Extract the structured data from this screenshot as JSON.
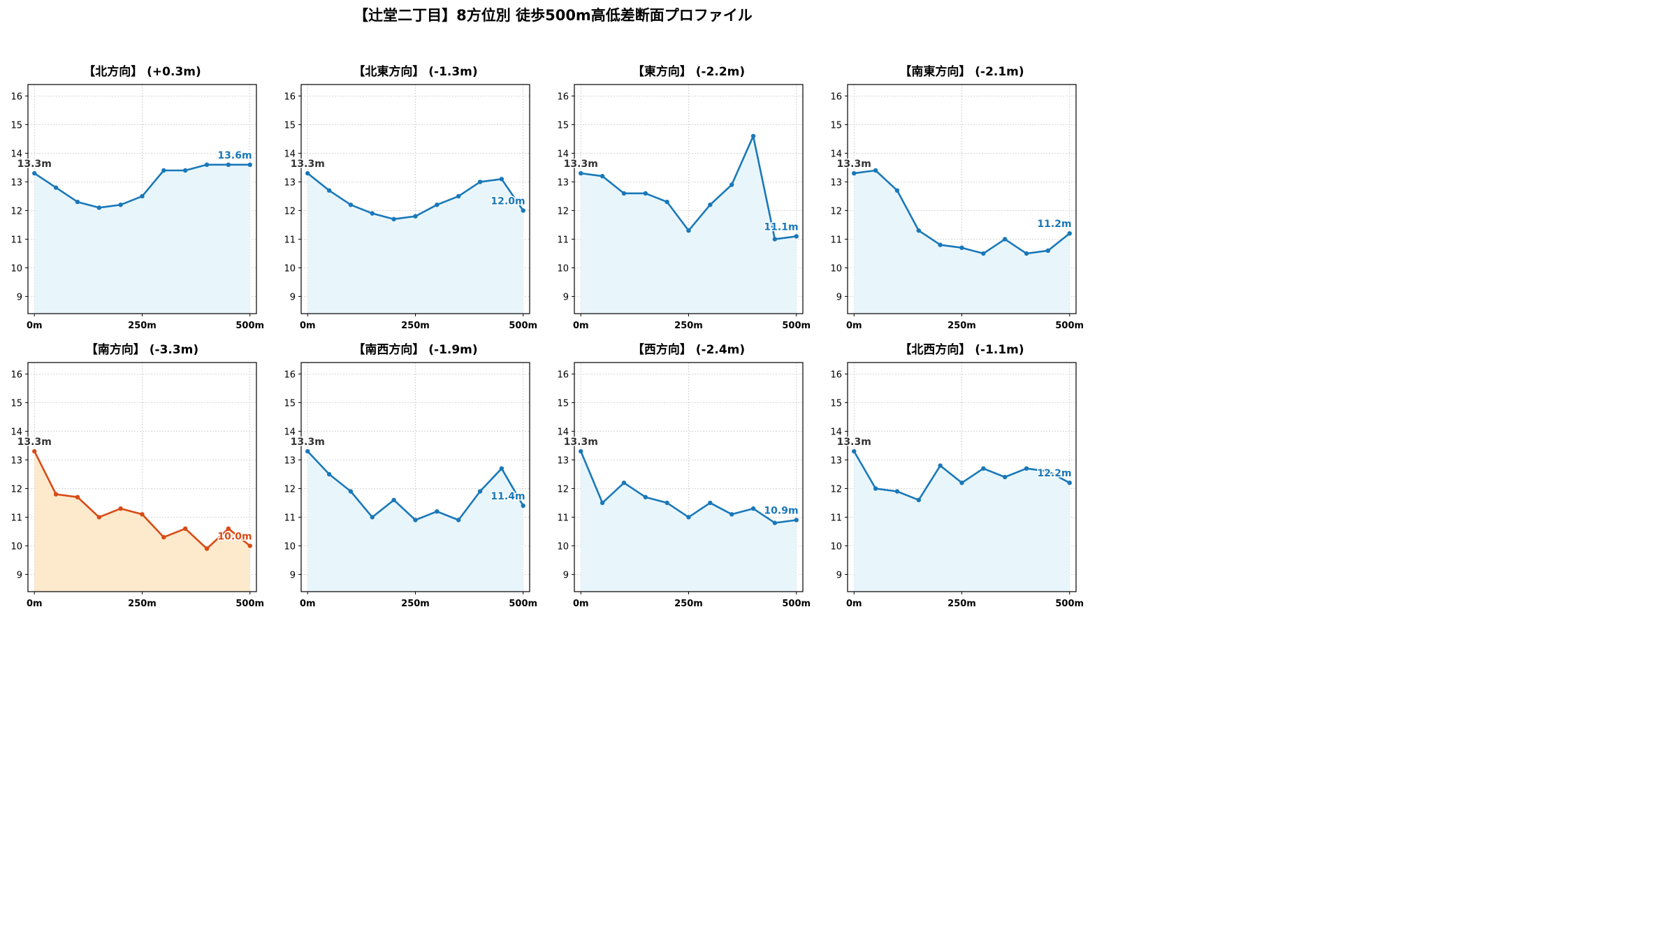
{
  "title": "【辻堂二丁目】8方位別 徒歩500m高低差断面プロファイル",
  "colors": {
    "line": "#1a78b8",
    "fill": "#e8f6fc",
    "highlight_line": "#d84b16",
    "highlight_fill": "#fde9cc",
    "start_label": "#333333",
    "grid": "#c8c8c8"
  },
  "chart_data": [
    {
      "type": "line",
      "title": "【北方向】 (+0.3m)",
      "x": [
        0,
        50,
        100,
        150,
        200,
        250,
        300,
        350,
        400,
        450,
        500
      ],
      "values": [
        13.3,
        12.8,
        12.3,
        12.1,
        12.2,
        12.5,
        13.4,
        13.4,
        13.6,
        13.6,
        13.6
      ],
      "start_label": "13.3m",
      "end_label": "13.6m",
      "highlight": false,
      "xticks": [
        "0m",
        "250m",
        "500m"
      ],
      "yticks": [
        "9",
        "10",
        "11",
        "12",
        "13",
        "14",
        "15",
        "16"
      ],
      "ylim": [
        8.4,
        16.4
      ],
      "xlim": [
        -15,
        515
      ],
      "grid": true
    },
    {
      "type": "line",
      "title": "【北東方向】 (-1.3m)",
      "x": [
        0,
        50,
        100,
        150,
        200,
        250,
        300,
        350,
        400,
        450,
        500
      ],
      "values": [
        13.3,
        12.7,
        12.2,
        11.9,
        11.7,
        11.8,
        12.2,
        12.5,
        13.0,
        13.1,
        12.0
      ],
      "start_label": "13.3m",
      "end_label": "12.0m",
      "highlight": false,
      "xticks": [
        "0m",
        "250m",
        "500m"
      ],
      "yticks": [
        "9",
        "10",
        "11",
        "12",
        "13",
        "14",
        "15",
        "16"
      ],
      "ylim": [
        8.4,
        16.4
      ],
      "xlim": [
        -15,
        515
      ],
      "grid": true
    },
    {
      "type": "line",
      "title": "【東方向】 (-2.2m)",
      "x": [
        0,
        50,
        100,
        150,
        200,
        250,
        300,
        350,
        400,
        450,
        500
      ],
      "values": [
        13.3,
        13.2,
        12.6,
        12.6,
        12.3,
        11.3,
        12.2,
        12.9,
        14.6,
        11.0,
        11.1
      ],
      "start_label": "13.3m",
      "end_label": "11.1m",
      "highlight": false,
      "xticks": [
        "0m",
        "250m",
        "500m"
      ],
      "yticks": [
        "9",
        "10",
        "11",
        "12",
        "13",
        "14",
        "15",
        "16"
      ],
      "ylim": [
        8.4,
        16.4
      ],
      "xlim": [
        -15,
        515
      ],
      "grid": true
    },
    {
      "type": "line",
      "title": "【南東方向】 (-2.1m)",
      "x": [
        0,
        50,
        100,
        150,
        200,
        250,
        300,
        350,
        400,
        450,
        500
      ],
      "values": [
        13.3,
        13.4,
        12.7,
        11.3,
        10.8,
        10.7,
        10.5,
        11.0,
        10.5,
        10.6,
        11.2
      ],
      "start_label": "13.3m",
      "end_label": "11.2m",
      "highlight": false,
      "xticks": [
        "0m",
        "250m",
        "500m"
      ],
      "yticks": [
        "9",
        "10",
        "11",
        "12",
        "13",
        "14",
        "15",
        "16"
      ],
      "ylim": [
        8.4,
        16.4
      ],
      "xlim": [
        -15,
        515
      ],
      "grid": true
    },
    {
      "type": "line",
      "title": "【南方向】 (-3.3m)",
      "x": [
        0,
        50,
        100,
        150,
        200,
        250,
        300,
        350,
        400,
        450,
        500
      ],
      "values": [
        13.3,
        11.8,
        11.7,
        11.0,
        11.3,
        11.1,
        10.3,
        10.6,
        9.9,
        10.6,
        10.0
      ],
      "start_label": "13.3m",
      "end_label": "10.0m",
      "highlight": true,
      "xticks": [
        "0m",
        "250m",
        "500m"
      ],
      "yticks": [
        "9",
        "10",
        "11",
        "12",
        "13",
        "14",
        "15",
        "16"
      ],
      "ylim": [
        8.4,
        16.4
      ],
      "xlim": [
        -15,
        515
      ],
      "grid": true
    },
    {
      "type": "line",
      "title": "【南西方向】 (-1.9m)",
      "x": [
        0,
        50,
        100,
        150,
        200,
        250,
        300,
        350,
        400,
        450,
        500
      ],
      "values": [
        13.3,
        12.5,
        11.9,
        11.0,
        11.6,
        10.9,
        11.2,
        10.9,
        11.9,
        12.7,
        11.4
      ],
      "start_label": "13.3m",
      "end_label": "11.4m",
      "highlight": false,
      "xticks": [
        "0m",
        "250m",
        "500m"
      ],
      "yticks": [
        "9",
        "10",
        "11",
        "12",
        "13",
        "14",
        "15",
        "16"
      ],
      "ylim": [
        8.4,
        16.4
      ],
      "xlim": [
        -15,
        515
      ],
      "grid": true
    },
    {
      "type": "line",
      "title": "【西方向】 (-2.4m)",
      "x": [
        0,
        50,
        100,
        150,
        200,
        250,
        300,
        350,
        400,
        450,
        500
      ],
      "values": [
        13.3,
        11.5,
        12.2,
        11.7,
        11.5,
        11.0,
        11.5,
        11.1,
        11.3,
        10.8,
        10.9
      ],
      "start_label": "13.3m",
      "end_label": "10.9m",
      "highlight": false,
      "xticks": [
        "0m",
        "250m",
        "500m"
      ],
      "yticks": [
        "9",
        "10",
        "11",
        "12",
        "13",
        "14",
        "15",
        "16"
      ],
      "ylim": [
        8.4,
        16.4
      ],
      "xlim": [
        -15,
        515
      ],
      "grid": true
    },
    {
      "type": "line",
      "title": "【北西方向】 (-1.1m)",
      "x": [
        0,
        50,
        100,
        150,
        200,
        250,
        300,
        350,
        400,
        450,
        500
      ],
      "values": [
        13.3,
        12.0,
        11.9,
        11.6,
        12.8,
        12.2,
        12.7,
        12.4,
        12.7,
        12.6,
        12.2
      ],
      "start_label": "13.3m",
      "end_label": "12.2m",
      "highlight": false,
      "xticks": [
        "0m",
        "250m",
        "500m"
      ],
      "yticks": [
        "9",
        "10",
        "11",
        "12",
        "13",
        "14",
        "15",
        "16"
      ],
      "ylim": [
        8.4,
        16.4
      ],
      "xlim": [
        -15,
        515
      ],
      "grid": true
    }
  ]
}
